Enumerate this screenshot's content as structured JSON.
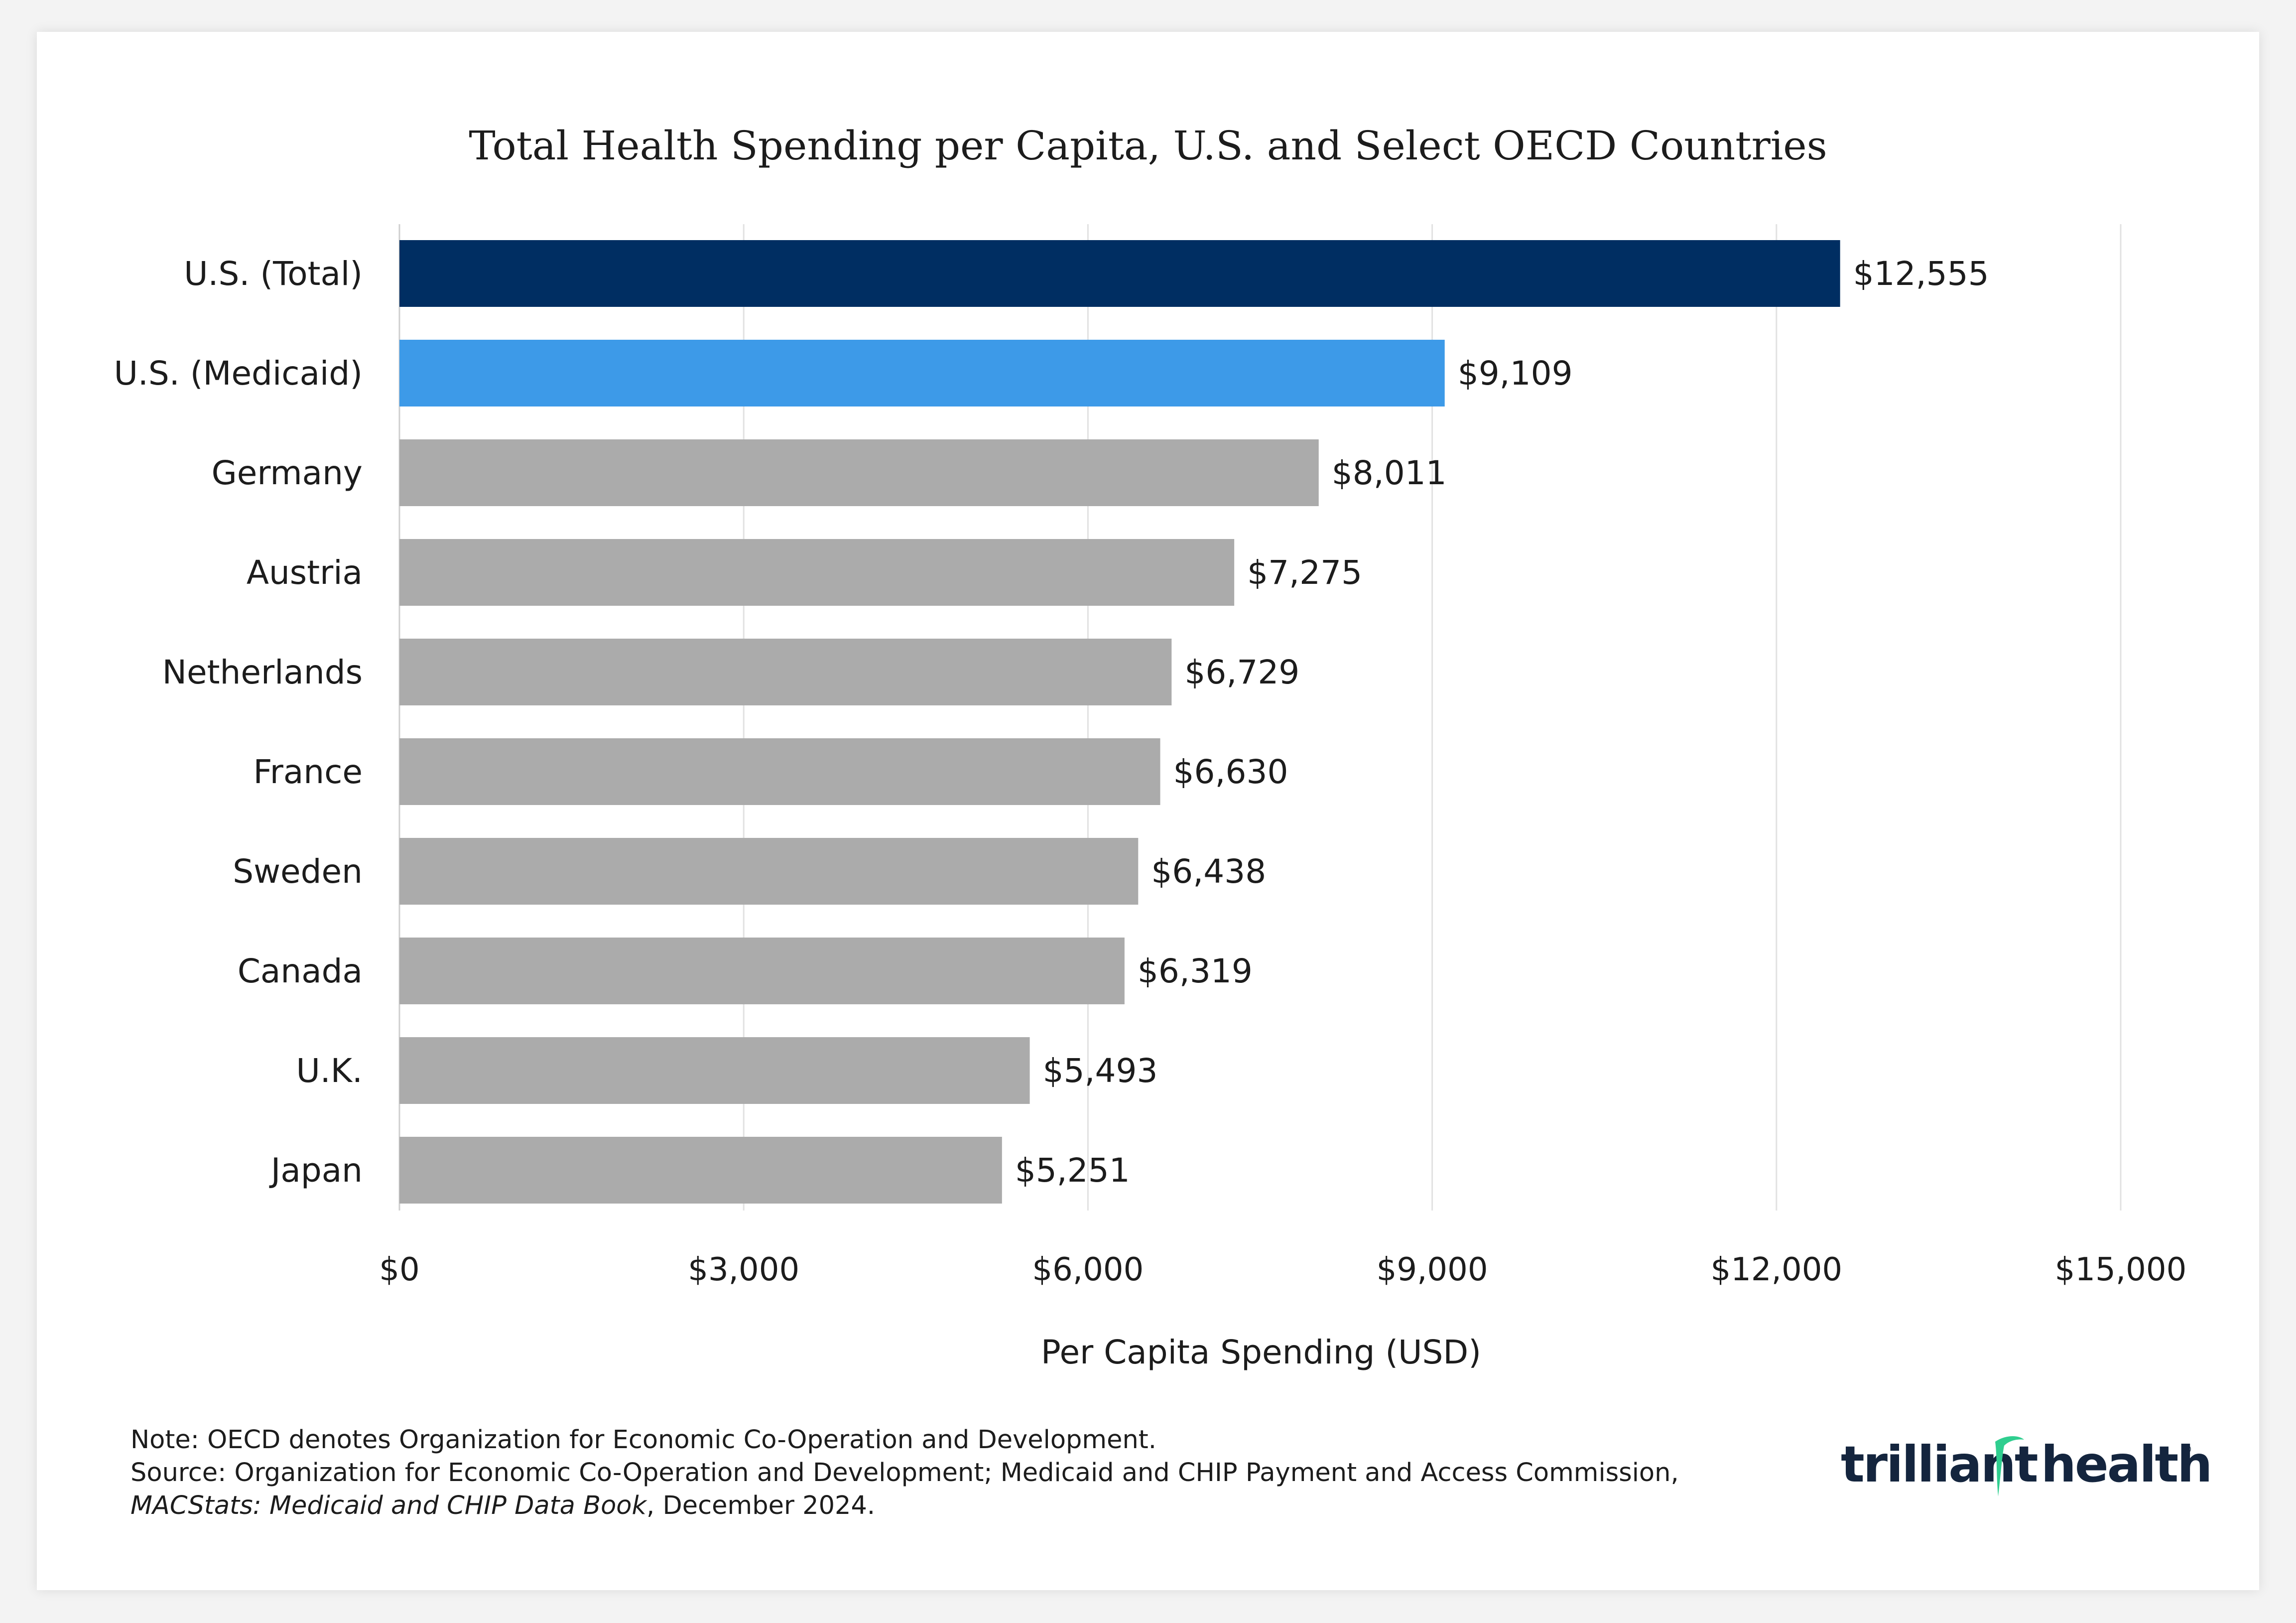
{
  "chart_data": {
    "type": "bar",
    "orientation": "horizontal",
    "title": "Total Health Spending per Capita, U.S. and Select OECD Countries",
    "xlabel": "Per Capita Spending (USD)",
    "ylabel": "",
    "xlim": [
      0,
      15000
    ],
    "x_ticks": [
      0,
      3000,
      6000,
      9000,
      12000,
      15000
    ],
    "x_tick_labels": [
      "$0",
      "$3,000",
      "$6,000",
      "$9,000",
      "$12,000",
      "$15,000"
    ],
    "grid": true,
    "categories": [
      "U.S. (Total)",
      "U.S. (Medicaid)",
      "Germany",
      "Austria",
      "Netherlands",
      "France",
      "Sweden",
      "Canada",
      "U.K.",
      "Japan"
    ],
    "values": [
      12555,
      9109,
      8011,
      7275,
      6729,
      6630,
      6438,
      6319,
      5493,
      5251
    ],
    "value_labels": [
      "$12,555",
      "$9,109",
      "$8,011",
      "$7,275",
      "$6,729",
      "$6,630",
      "$6,438",
      "$6,319",
      "$5,493",
      "$5,251"
    ],
    "colors": [
      "#002e62",
      "#3d9ae8",
      "#ababab",
      "#ababab",
      "#ababab",
      "#ababab",
      "#ababab",
      "#ababab",
      "#ababab",
      "#ababab"
    ]
  },
  "colors": {
    "grid": "#e2e2e2",
    "axis": "#cfcfcf",
    "text": "#1c1c1c",
    "logo": "#14253e",
    "logo_accent": "#2fce8f"
  },
  "notes": {
    "note": "Note: OECD denotes Organization for Economic Co-Operation and Development.",
    "source": "Source: Organization for Economic Co-Operation and Development; Medicaid and CHIP Payment and Access Commission,",
    "source_italic": "MACStats: Medicaid and CHIP Data Book",
    "source_end": ", December 2024."
  },
  "logo": {
    "text": "trilliant health",
    "part1": "trilliant",
    "part2": "health",
    "reg": "®"
  }
}
